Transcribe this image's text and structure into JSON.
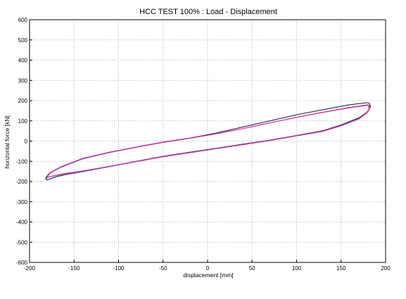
{
  "chart_data": {
    "type": "line",
    "title": "HCC TEST 100% : Load - Displacement",
    "xlabel": "displacement [mm]",
    "ylabel": "horizontal force [kN]",
    "xlim": [
      -200,
      200
    ],
    "ylim": [
      -600,
      600
    ],
    "x_ticks": [
      -200,
      -150,
      -100,
      -50,
      0,
      50,
      100,
      150,
      200
    ],
    "y_ticks": [
      -600,
      -500,
      -400,
      -300,
      -200,
      -100,
      0,
      100,
      200,
      300,
      400,
      500,
      600
    ],
    "grid": true,
    "legend": "none",
    "series": [
      {
        "color": "#1a1a1a",
        "x": [
          180,
          182,
          183,
          180,
          170,
          150,
          130,
          100,
          70,
          40,
          10,
          -20,
          -50,
          -80,
          -110,
          -140,
          -160,
          -172,
          -178,
          -181,
          -182,
          -178,
          -165,
          -140,
          -110,
          -80,
          -50,
          -20,
          10,
          40,
          70,
          100,
          130,
          160,
          180
        ],
        "y": [
          190,
          185,
          170,
          145,
          115,
          80,
          52,
          28,
          5,
          -15,
          -35,
          -55,
          -75,
          -100,
          -125,
          -150,
          -165,
          -178,
          -188,
          -192,
          -182,
          -160,
          -130,
          -85,
          -55,
          -30,
          -5,
          15,
          40,
          70,
          100,
          130,
          155,
          180,
          190
        ]
      },
      {
        "color": "#4a7ab5",
        "x": [
          180,
          182,
          182,
          179,
          170,
          150,
          130,
          100,
          70,
          40,
          10,
          -20,
          -50,
          -80,
          -110,
          -140,
          -160,
          -172,
          -178,
          -180,
          -181,
          -178,
          -165,
          -140,
          -110,
          -80,
          -50,
          -20,
          10,
          40,
          70,
          100,
          130,
          160,
          180
        ],
        "y": [
          180,
          175,
          163,
          140,
          112,
          78,
          50,
          27,
          4,
          -16,
          -36,
          -56,
          -77,
          -102,
          -127,
          -152,
          -167,
          -180,
          -190,
          -193,
          -183,
          -160,
          -130,
          -88,
          -57,
          -31,
          -7,
          13,
          36,
          62,
          90,
          118,
          143,
          167,
          180
        ]
      },
      {
        "color": "#e03030",
        "x": [
          180,
          182,
          182,
          179,
          170,
          150,
          130,
          100,
          70,
          40,
          10,
          -20,
          -50,
          -80,
          -110,
          -140,
          -160,
          -172,
          -178,
          -180,
          -180,
          -177,
          -165,
          -140,
          -110,
          -80,
          -50,
          -20,
          10,
          40,
          70,
          100,
          130,
          160,
          180
        ],
        "y": [
          178,
          172,
          160,
          138,
          110,
          76,
          49,
          26,
          3,
          -17,
          -37,
          -57,
          -77,
          -101,
          -125,
          -148,
          -162,
          -172,
          -178,
          -180,
          -172,
          -155,
          -128,
          -86,
          -56,
          -30,
          -6,
          14,
          36,
          62,
          90,
          118,
          143,
          166,
          178
        ]
      },
      {
        "color": "#cc33cc",
        "x": [
          180,
          181,
          181,
          178,
          170,
          150,
          130,
          100,
          70,
          40,
          10,
          -20,
          -50,
          -80,
          -110,
          -140,
          -160,
          -172,
          -177,
          -179,
          -179,
          -176,
          -165,
          -140,
          -110,
          -80,
          -50,
          -20,
          10,
          40,
          70,
          100,
          130,
          160,
          180
        ],
        "y": [
          176,
          170,
          158,
          136,
          109,
          75,
          48,
          25,
          2,
          -18,
          -38,
          -58,
          -78,
          -102,
          -125,
          -147,
          -160,
          -170,
          -176,
          -178,
          -170,
          -154,
          -127,
          -85,
          -55,
          -29,
          -5,
          15,
          37,
          62,
          90,
          117,
          142,
          165,
          176
        ]
      }
    ]
  }
}
